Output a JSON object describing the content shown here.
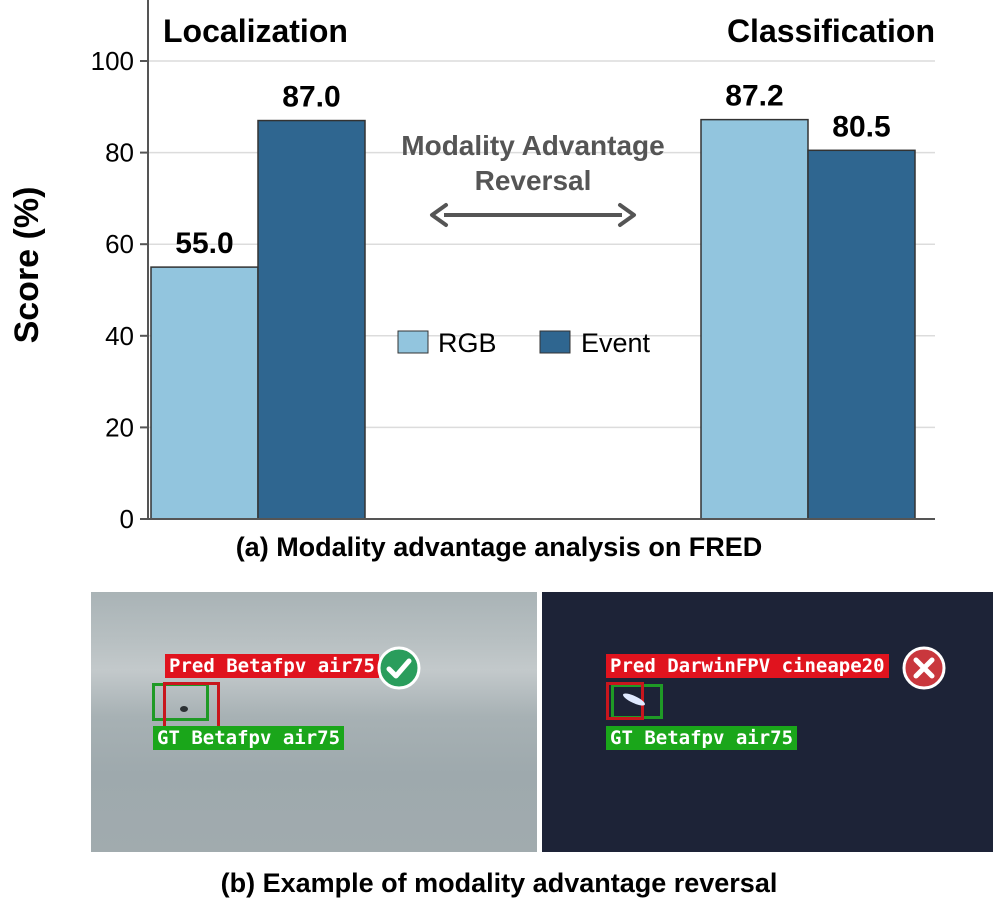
{
  "chart_data": {
    "type": "bar",
    "groups": [
      "Localization",
      "Classification"
    ],
    "series": [
      {
        "name": "RGB",
        "color": "#92c5de",
        "values": [
          55.0,
          87.2
        ]
      },
      {
        "name": "Event",
        "color": "#2f6690",
        "values": [
          87.0,
          80.5
        ]
      }
    ],
    "data_labels": [
      [
        "55.0",
        "87.2"
      ],
      [
        "87.0",
        "80.5"
      ]
    ],
    "ylabel": "Score (%)",
    "ylim": [
      0,
      100
    ],
    "yticks": [
      "0",
      "20",
      "40",
      "60",
      "80",
      "100"
    ],
    "grid": "horizontal",
    "legend": "center",
    "annotation": {
      "line1": "Modality Advantage",
      "line2": "Reversal"
    }
  },
  "captions": {
    "a": "(a) Modality advantage analysis on FRED",
    "b": "(b) Example of modality advantage reversal"
  },
  "examples": {
    "rgb": {
      "pred": "Pred Betafpv air75",
      "gt": "GT Betafpv air75",
      "status": "check-icon"
    },
    "event": {
      "pred": "Pred DarwinFPV cineape20",
      "gt": "GT Betafpv air75",
      "status": "cross-icon"
    }
  }
}
